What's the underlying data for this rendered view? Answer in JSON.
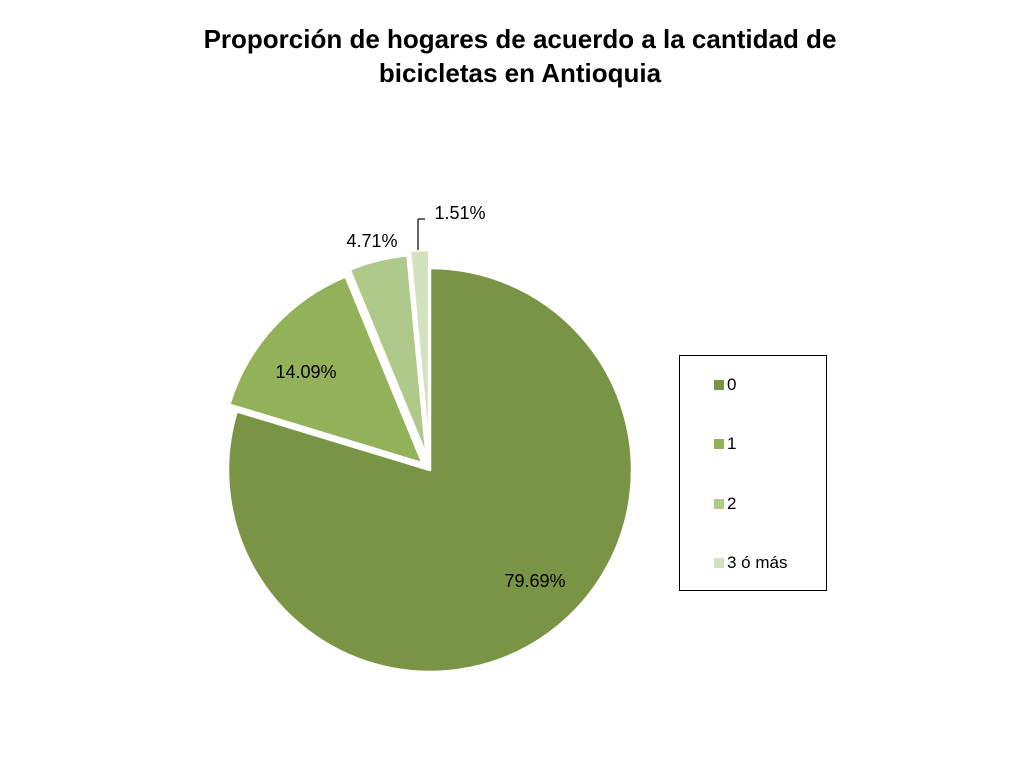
{
  "chart_data": {
    "type": "pie",
    "title_lines": [
      "Proporción de hogares de acuerdo a la cantidad de",
      "bicicletas en Antioquia"
    ],
    "categories": [
      "0",
      "1",
      "2",
      "3 ó más"
    ],
    "values": [
      79.69,
      14.09,
      4.71,
      1.51
    ],
    "data_labels": [
      "79.69%",
      "14.09%",
      "4.71%",
      "1.51%"
    ],
    "colors": [
      "#7A9445",
      "#93B159",
      "#AFC98A",
      "#D3E2BE"
    ],
    "start": "top, clockwise",
    "legend": "right"
  }
}
